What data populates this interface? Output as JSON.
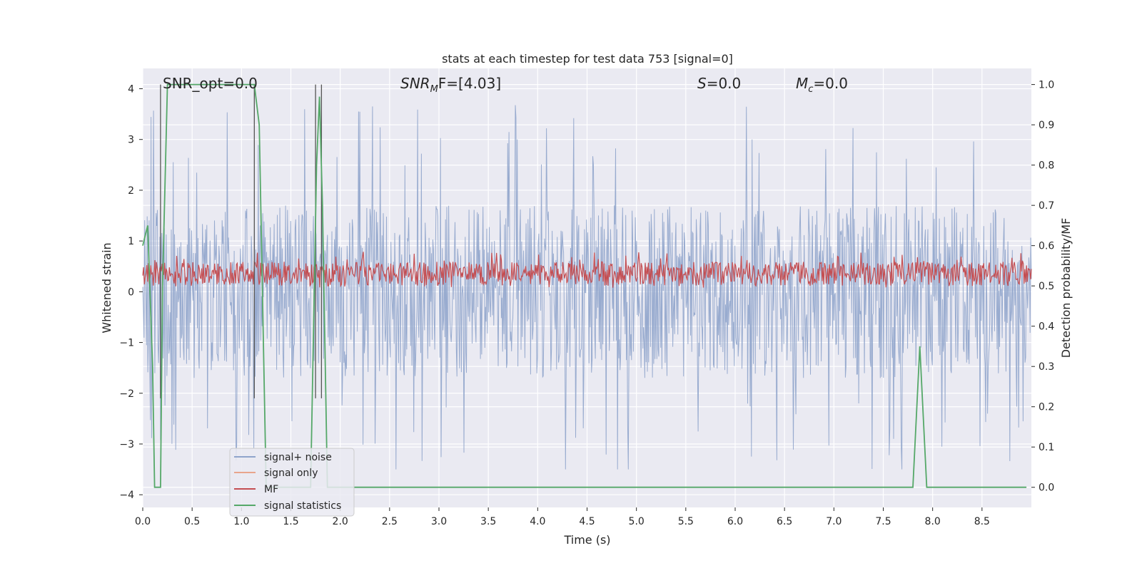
{
  "chart_data": {
    "type": "line",
    "title": "stats at each timestep for test data 753 [signal=0]",
    "xlabel": "Time (s)",
    "ylabel_left": "Whitened strain",
    "ylabel_right": "Detection probability/MF",
    "xlim": [
      0.0,
      9.0
    ],
    "ylim_left": [
      -4.25,
      4.4
    ],
    "ylim_right": [
      -0.05,
      1.04
    ],
    "x_ticks": [
      "0.0",
      "0.5",
      "1.0",
      "1.5",
      "2.0",
      "2.5",
      "3.0",
      "3.5",
      "4.0",
      "4.5",
      "5.0",
      "5.5",
      "6.0",
      "6.5",
      "7.0",
      "7.5",
      "8.0",
      "8.5"
    ],
    "y_ticks_left": [
      "-4",
      "-3",
      "-2",
      "-1",
      "0",
      "1",
      "2",
      "3",
      "4"
    ],
    "y_ticks_right": [
      "0.0",
      "0.1",
      "0.2",
      "0.3",
      "0.4",
      "0.5",
      "0.6",
      "0.7",
      "0.8",
      "0.9",
      "1.0"
    ],
    "grid": true,
    "annotations": {
      "snr_opt": "SNR_opt=0.0",
      "snr_mf_sym": "SNR",
      "snr_mf_sub": "M",
      "snr_mf_rest": "F=[4.03]",
      "s_sym": "S",
      "s_val": "=0.0",
      "mc_sym": "M",
      "mc_sub": "c",
      "mc_val": "=0.0"
    },
    "legend": {
      "placement": "lower-left",
      "entries": [
        "signal+ noise",
        "signal only",
        "MF",
        "signal statistics"
      ]
    },
    "series": [
      {
        "name": "signal+ noise",
        "axis": "left",
        "color": "#8fa4cb",
        "description": "noise band, approx amplitude -3.5 to 4.0 around 0",
        "band_range": [
          -3.5,
          4.0
        ]
      },
      {
        "name": "signal only",
        "axis": "left",
        "color": "#e8a58c",
        "values": []
      },
      {
        "name": "MF",
        "axis": "right",
        "color": "#c44e52",
        "band_range": [
          0.5,
          0.56
        ]
      },
      {
        "name": "signal statistics",
        "axis": "right",
        "color": "#55a868",
        "x": [
          0.0,
          0.05,
          0.1,
          0.12,
          0.18,
          0.2,
          0.25,
          0.3,
          0.5,
          1.0,
          1.13,
          1.18,
          1.25,
          1.3,
          1.35,
          1.6,
          1.7,
          1.76,
          1.79,
          1.82,
          1.87,
          2.0,
          7.0,
          7.8,
          7.87,
          7.94,
          8.0,
          8.95
        ],
        "values": [
          0.6,
          0.65,
          0.3,
          0.0,
          0.0,
          0.5,
          1.0,
          1.0,
          1.0,
          1.0,
          1.0,
          0.9,
          0.0,
          0.0,
          0.0,
          0.0,
          0.0,
          0.8,
          0.97,
          0.7,
          0.0,
          0.0,
          0.0,
          0.0,
          0.35,
          0.0,
          0.0,
          0.0
        ]
      }
    ],
    "vertical_markers_x": [
      0.18,
      1.13,
      1.75,
      1.81
    ]
  }
}
